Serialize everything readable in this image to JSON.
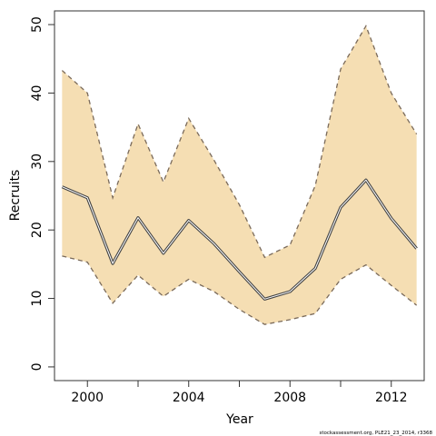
{
  "chart_data": {
    "type": "line",
    "xlabel": "Year",
    "ylabel": "Recruits",
    "xlim": [
      1998.7,
      2013.3
    ],
    "ylim": [
      -2,
      52
    ],
    "x_ticks": [
      2000,
      2004,
      2008,
      2012
    ],
    "x_minor_ticks": [
      2002,
      2006,
      2010
    ],
    "y_ticks": [
      0,
      10,
      20,
      30,
      40,
      50
    ],
    "grid": false,
    "legend": "none",
    "x": [
      1999,
      2000,
      2001,
      2002,
      2003,
      2004,
      2005,
      2006,
      2007,
      2008,
      2009,
      2010,
      2011,
      2012,
      2013
    ],
    "series": [
      {
        "role": "estimate",
        "values": [
          26.3,
          24.7,
          15.1,
          21.8,
          16.6,
          21.4,
          18.0,
          13.9,
          9.9,
          11.0,
          14.4,
          23.3,
          27.3,
          21.7,
          17.3
        ]
      },
      {
        "role": "upper",
        "values": [
          43.3,
          40.0,
          24.7,
          35.5,
          27.0,
          36.3,
          30.2,
          23.7,
          16.0,
          17.8,
          26.5,
          43.5,
          49.8,
          40.0,
          34.0
        ]
      },
      {
        "role": "lower",
        "values": [
          16.2,
          15.3,
          9.3,
          13.4,
          10.3,
          12.8,
          11.0,
          8.4,
          6.2,
          6.9,
          7.8,
          12.8,
          14.9,
          11.9,
          9.0
        ]
      }
    ],
    "colors": {
      "band": "#f5deb3",
      "band_edge": "#7a6a5a",
      "line_outer": "#444444",
      "line_inner": "#ffffff",
      "frame": "#333333"
    }
  },
  "footnote": "stockassessment.org, PLE21_23_2014, r3368"
}
